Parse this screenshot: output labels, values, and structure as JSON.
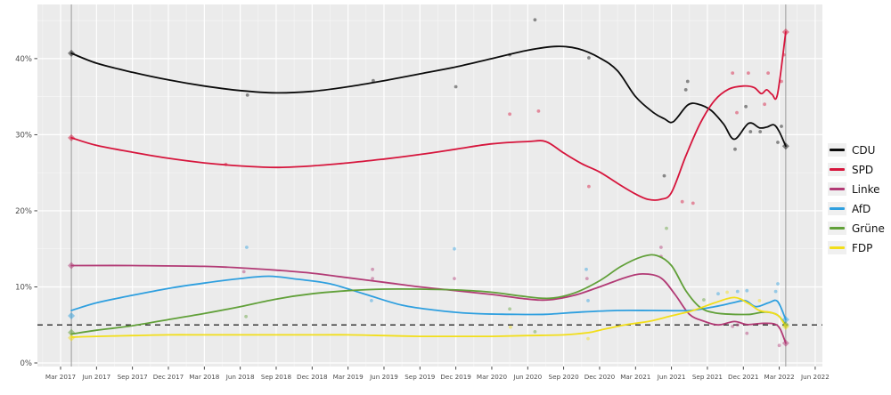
{
  "chart_data": {
    "type": "line",
    "title": "",
    "x_axis": {
      "t_unit": "quarters since Mar 2017",
      "tick_t": [
        0,
        1,
        2,
        3,
        4,
        5,
        6,
        7,
        8,
        9,
        10,
        11,
        12,
        13,
        14,
        15,
        16,
        17,
        18,
        19,
        20,
        21
      ],
      "tick_labels": [
        "Mar 2017",
        "Jun 2017",
        "Sep 2017",
        "Dec 2017",
        "Mar 2018",
        "Jun 2018",
        "Sep 2018",
        "Dec 2018",
        "Mar 2019",
        "Jun 2019",
        "Sep 2019",
        "Dec 2019",
        "Mar 2020",
        "Jun 2020",
        "Sep 2020",
        "Dec 2020",
        "Mar 2021",
        "Jun 2021",
        "Sep 2021",
        "Dec 2021",
        "Mar 2022",
        "Jun 2022"
      ]
    },
    "y_axis": {
      "tick_values": [
        0,
        10,
        20,
        30,
        40
      ],
      "tick_labels": [
        "0%",
        "10%",
        "20%",
        "30%",
        "40%"
      ],
      "range": [
        0,
        47
      ]
    },
    "grid": {
      "major_every": 10,
      "minor_every": 5,
      "vertical_major_every_quarter": true
    },
    "threshold_line": {
      "value": 5,
      "style": "dashed",
      "color": "#3a3a3a"
    },
    "election_lines_t": [
      0.3,
      20.18
    ],
    "legend_position": "right",
    "series": [
      {
        "label": "CDU",
        "color": "#0b0b0b",
        "trend": [
          [
            0.3,
            40.7
          ],
          [
            1,
            39.4
          ],
          [
            2,
            38.2
          ],
          [
            3,
            37.2
          ],
          [
            4,
            36.4
          ],
          [
            5,
            35.8
          ],
          [
            6,
            35.5
          ],
          [
            7,
            35.7
          ],
          [
            8,
            36.3
          ],
          [
            9,
            37.1
          ],
          [
            10,
            38.0
          ],
          [
            11,
            38.9
          ],
          [
            12,
            40.0
          ],
          [
            13,
            41.1
          ],
          [
            13.8,
            41.6
          ],
          [
            14.4,
            41.3
          ],
          [
            15,
            40.1
          ],
          [
            15.5,
            38.4
          ],
          [
            16,
            35.0
          ],
          [
            16.5,
            32.9
          ],
          [
            16.8,
            32.1
          ],
          [
            17.05,
            31.7
          ],
          [
            17.45,
            33.9
          ],
          [
            17.75,
            34.0
          ],
          [
            18.1,
            33.2
          ],
          [
            18.45,
            31.4
          ],
          [
            18.75,
            29.4
          ],
          [
            19.15,
            31.5
          ],
          [
            19.45,
            30.9
          ],
          [
            19.65,
            31.0
          ],
          [
            19.85,
            31.3
          ],
          [
            20.0,
            30.4
          ],
          [
            20.18,
            28.5
          ]
        ],
        "polls": [
          [
            5.2,
            35.2
          ],
          [
            8.7,
            37.1
          ],
          [
            11.0,
            36.3
          ],
          [
            12.5,
            40.5
          ],
          [
            13.2,
            45.1
          ],
          [
            14.7,
            40.1
          ],
          [
            16.8,
            24.6
          ],
          [
            17.4,
            35.9
          ],
          [
            17.45,
            37.0
          ],
          [
            18.77,
            28.1
          ],
          [
            19.07,
            33.7
          ],
          [
            19.2,
            30.4
          ],
          [
            19.47,
            30.4
          ],
          [
            19.96,
            29.0
          ],
          [
            20.06,
            31.1
          ]
        ],
        "elections": [
          [
            0.3,
            40.7
          ],
          [
            20.18,
            28.5
          ]
        ]
      },
      {
        "label": "SPD",
        "color": "#d6153c",
        "trend": [
          [
            0.3,
            29.6
          ],
          [
            1,
            28.6
          ],
          [
            2,
            27.7
          ],
          [
            3,
            26.9
          ],
          [
            4,
            26.3
          ],
          [
            5,
            25.9
          ],
          [
            6,
            25.7
          ],
          [
            7,
            25.9
          ],
          [
            8,
            26.3
          ],
          [
            9,
            26.8
          ],
          [
            10,
            27.4
          ],
          [
            11,
            28.1
          ],
          [
            12,
            28.8
          ],
          [
            13,
            29.1
          ],
          [
            13.5,
            29.1
          ],
          [
            14,
            27.6
          ],
          [
            14.5,
            26.2
          ],
          [
            15,
            25.1
          ],
          [
            15.5,
            23.6
          ],
          [
            16,
            22.2
          ],
          [
            16.35,
            21.5
          ],
          [
            16.7,
            21.5
          ],
          [
            17.0,
            22.4
          ],
          [
            17.4,
            27.2
          ],
          [
            17.8,
            31.5
          ],
          [
            18.2,
            34.5
          ],
          [
            18.6,
            36.0
          ],
          [
            19.0,
            36.4
          ],
          [
            19.3,
            36.2
          ],
          [
            19.5,
            35.4
          ],
          [
            19.65,
            35.9
          ],
          [
            19.8,
            35.3
          ],
          [
            19.95,
            35.3
          ],
          [
            20.18,
            43.5
          ]
        ],
        "polls": [
          [
            4.6,
            26.1
          ],
          [
            12.5,
            32.7
          ],
          [
            13.3,
            33.1
          ],
          [
            14.7,
            23.2
          ],
          [
            17.3,
            21.2
          ],
          [
            17.6,
            21.0
          ],
          [
            18.7,
            38.1
          ],
          [
            18.82,
            32.9
          ],
          [
            19.14,
            38.1
          ],
          [
            19.59,
            34.0
          ],
          [
            19.69,
            38.1
          ],
          [
            20.06,
            37.0
          ],
          [
            20.13,
            40.5
          ]
        ],
        "elections": [
          [
            0.3,
            29.6
          ],
          [
            20.18,
            43.5
          ]
        ]
      },
      {
        "label": "Linke",
        "color": "#b23a75",
        "trend": [
          [
            0.3,
            12.8
          ],
          [
            2,
            12.8
          ],
          [
            4,
            12.7
          ],
          [
            5,
            12.5
          ],
          [
            6,
            12.2
          ],
          [
            7,
            11.8
          ],
          [
            8,
            11.2
          ],
          [
            9,
            10.6
          ],
          [
            10,
            10.0
          ],
          [
            11,
            9.5
          ],
          [
            12,
            9.0
          ],
          [
            13,
            8.4
          ],
          [
            13.6,
            8.3
          ],
          [
            14.3,
            8.9
          ],
          [
            15,
            10.0
          ],
          [
            15.7,
            11.2
          ],
          [
            16.2,
            11.7
          ],
          [
            16.7,
            11.2
          ],
          [
            17.1,
            9.0
          ],
          [
            17.5,
            6.4
          ],
          [
            17.9,
            5.5
          ],
          [
            18.3,
            5.0
          ],
          [
            18.75,
            5.45
          ],
          [
            19.1,
            5.05
          ],
          [
            19.5,
            5.2
          ],
          [
            19.85,
            5.15
          ],
          [
            20.02,
            4.5
          ],
          [
            20.18,
            2.6
          ]
        ],
        "polls": [
          [
            5.1,
            12.0
          ],
          [
            8.68,
            12.3
          ],
          [
            8.68,
            11.1
          ],
          [
            10.96,
            11.1
          ],
          [
            14.65,
            11.1
          ],
          [
            16.71,
            15.2
          ],
          [
            16.71,
            14.0
          ],
          [
            18.7,
            4.8
          ],
          [
            18.84,
            5.0
          ],
          [
            19.1,
            3.9
          ],
          [
            20.0,
            2.3
          ]
        ],
        "elections": [
          [
            0.3,
            12.8
          ],
          [
            20.18,
            2.6
          ]
        ]
      },
      {
        "label": "AfD",
        "color": "#2e9fdf",
        "trend": [
          [
            0.3,
            6.9
          ],
          [
            1,
            7.9
          ],
          [
            2,
            8.9
          ],
          [
            3,
            9.8
          ],
          [
            4,
            10.5
          ],
          [
            5,
            11.1
          ],
          [
            5.8,
            11.4
          ],
          [
            6.6,
            11.0
          ],
          [
            7.5,
            10.4
          ],
          [
            8.5,
            9.0
          ],
          [
            9.5,
            7.6
          ],
          [
            10.5,
            6.9
          ],
          [
            11.5,
            6.5
          ],
          [
            12.5,
            6.4
          ],
          [
            13.5,
            6.4
          ],
          [
            14.5,
            6.7
          ],
          [
            15.5,
            6.9
          ],
          [
            16.5,
            6.9
          ],
          [
            17.5,
            6.9
          ],
          [
            18.2,
            7.4
          ],
          [
            18.7,
            7.9
          ],
          [
            19.05,
            8.2
          ],
          [
            19.35,
            7.4
          ],
          [
            19.7,
            7.9
          ],
          [
            19.95,
            8.1
          ],
          [
            20.18,
            5.7
          ]
        ],
        "polls": [
          [
            5.18,
            15.2
          ],
          [
            8.65,
            8.2
          ],
          [
            10.96,
            15.0
          ],
          [
            14.63,
            12.3
          ],
          [
            14.68,
            8.2
          ],
          [
            18.3,
            9.1
          ],
          [
            18.84,
            9.4
          ],
          [
            19.1,
            9.5
          ],
          [
            19.9,
            9.4
          ],
          [
            19.96,
            10.4
          ]
        ],
        "elections": [
          [
            0.3,
            6.2
          ],
          [
            20.18,
            5.7
          ]
        ]
      },
      {
        "label": "Grüne",
        "color": "#61a039",
        "trend": [
          [
            0.3,
            3.8
          ],
          [
            1,
            4.3
          ],
          [
            2,
            4.9
          ],
          [
            3,
            5.7
          ],
          [
            4,
            6.5
          ],
          [
            5,
            7.4
          ],
          [
            6,
            8.4
          ],
          [
            7,
            9.1
          ],
          [
            8,
            9.5
          ],
          [
            9,
            9.7
          ],
          [
            10,
            9.7
          ],
          [
            11,
            9.6
          ],
          [
            12,
            9.3
          ],
          [
            12.8,
            8.8
          ],
          [
            13.6,
            8.5
          ],
          [
            14.3,
            9.2
          ],
          [
            15,
            10.8
          ],
          [
            15.6,
            12.7
          ],
          [
            16.2,
            14.0
          ],
          [
            16.6,
            14.1
          ],
          [
            17.0,
            12.8
          ],
          [
            17.4,
            9.5
          ],
          [
            17.8,
            7.3
          ],
          [
            18.2,
            6.6
          ],
          [
            18.7,
            6.4
          ],
          [
            19.2,
            6.4
          ],
          [
            19.6,
            6.7
          ],
          [
            19.95,
            6.3
          ],
          [
            20.18,
            5.0
          ]
        ],
        "polls": [
          [
            5.16,
            6.1
          ],
          [
            12.5,
            7.1
          ],
          [
            13.2,
            4.1
          ],
          [
            16.86,
            17.7
          ],
          [
            17.9,
            8.3
          ]
        ],
        "elections": [
          [
            0.3,
            4.0
          ],
          [
            20.18,
            5.0
          ]
        ]
      },
      {
        "label": "FDP",
        "color": "#f2de1a",
        "trend": [
          [
            0.3,
            3.4
          ],
          [
            1,
            3.5
          ],
          [
            2,
            3.6
          ],
          [
            3,
            3.7
          ],
          [
            4,
            3.7
          ],
          [
            5,
            3.7
          ],
          [
            6,
            3.7
          ],
          [
            7,
            3.7
          ],
          [
            8,
            3.7
          ],
          [
            9,
            3.6
          ],
          [
            10,
            3.5
          ],
          [
            11,
            3.5
          ],
          [
            12,
            3.5
          ],
          [
            13,
            3.6
          ],
          [
            14,
            3.7
          ],
          [
            14.7,
            4.0
          ],
          [
            15,
            4.3
          ],
          [
            15.7,
            5.0
          ],
          [
            16.4,
            5.5
          ],
          [
            17,
            6.2
          ],
          [
            17.6,
            6.9
          ],
          [
            18.2,
            7.9
          ],
          [
            18.75,
            8.6
          ],
          [
            19.15,
            7.8
          ],
          [
            19.45,
            6.9
          ],
          [
            19.8,
            6.6
          ],
          [
            20.0,
            6.1
          ],
          [
            20.18,
            4.8
          ]
        ],
        "polls": [
          [
            12.52,
            4.7
          ],
          [
            14.68,
            3.2
          ],
          [
            18.55,
            9.3
          ],
          [
            19.45,
            8.2
          ]
        ],
        "elections": [
          [
            0.3,
            3.3
          ],
          [
            20.18,
            4.8
          ]
        ]
      }
    ]
  }
}
